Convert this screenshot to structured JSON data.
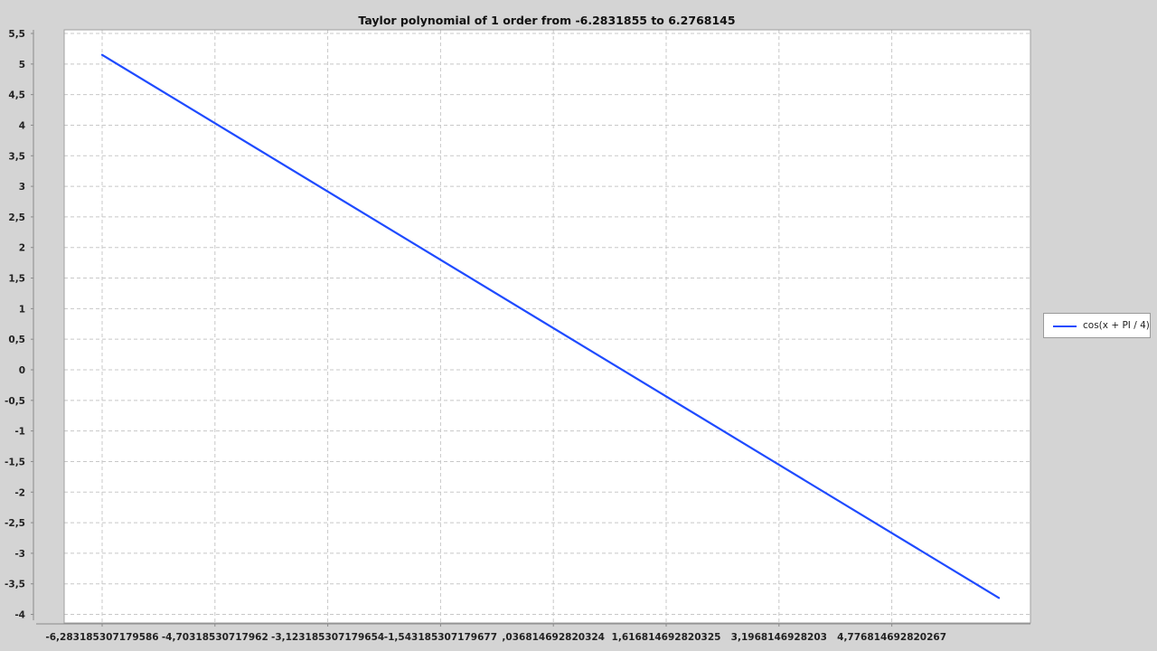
{
  "chart_data": {
    "type": "line",
    "title": "Taylor polynomial of 1 order from -6.2831855 to 6.2768145",
    "xlabel": "",
    "ylabel": "",
    "xlim": [
      -7.0,
      7.0
    ],
    "ylim": [
      -4.1,
      5.5
    ],
    "grid": true,
    "legend_position": "right",
    "x_ticks": [
      -6.283185307179586,
      -4.70318530717962,
      -3.123185307179654,
      -1.543185307179677,
      0.036814692820324,
      1.616814692820325,
      3.1968146928203,
      4.776814692820267
    ],
    "x_tick_labels": [
      "-6,283185307179586",
      "-4,70318530717962",
      "-3,123185307179654",
      "-1,543185307179677",
      ",036814692820324",
      "1,616814692820325",
      "3,1968146928203",
      "4,776814692820267"
    ],
    "y_ticks": [
      5.5,
      5,
      4.5,
      4,
      3.5,
      3,
      2.5,
      2,
      1.5,
      1,
      0.5,
      0,
      -0.5,
      -1,
      -1.5,
      -2,
      -2.5,
      -3,
      -3.5,
      -4
    ],
    "y_tick_labels": [
      "5,5",
      "5",
      "4,5",
      "4",
      "3,5",
      "3",
      "2,5",
      "2",
      "1,5",
      "1",
      "0,5",
      "0",
      "-0,5",
      "-1",
      "-1,5",
      "-2",
      "-2,5",
      "-3",
      "-3,5",
      "-4"
    ],
    "series": [
      {
        "name": "cos(x + PI / 4)",
        "color": "#1f4bff",
        "x": [
          -6.2831855,
          6.2768145
        ],
        "y": [
          5.15,
          -3.73
        ]
      }
    ]
  },
  "colors": {
    "page_background": "#d4d4d4",
    "plot_background": "#ffffff",
    "grid": "#c8c8c8",
    "axis": "#8a8a8a"
  }
}
